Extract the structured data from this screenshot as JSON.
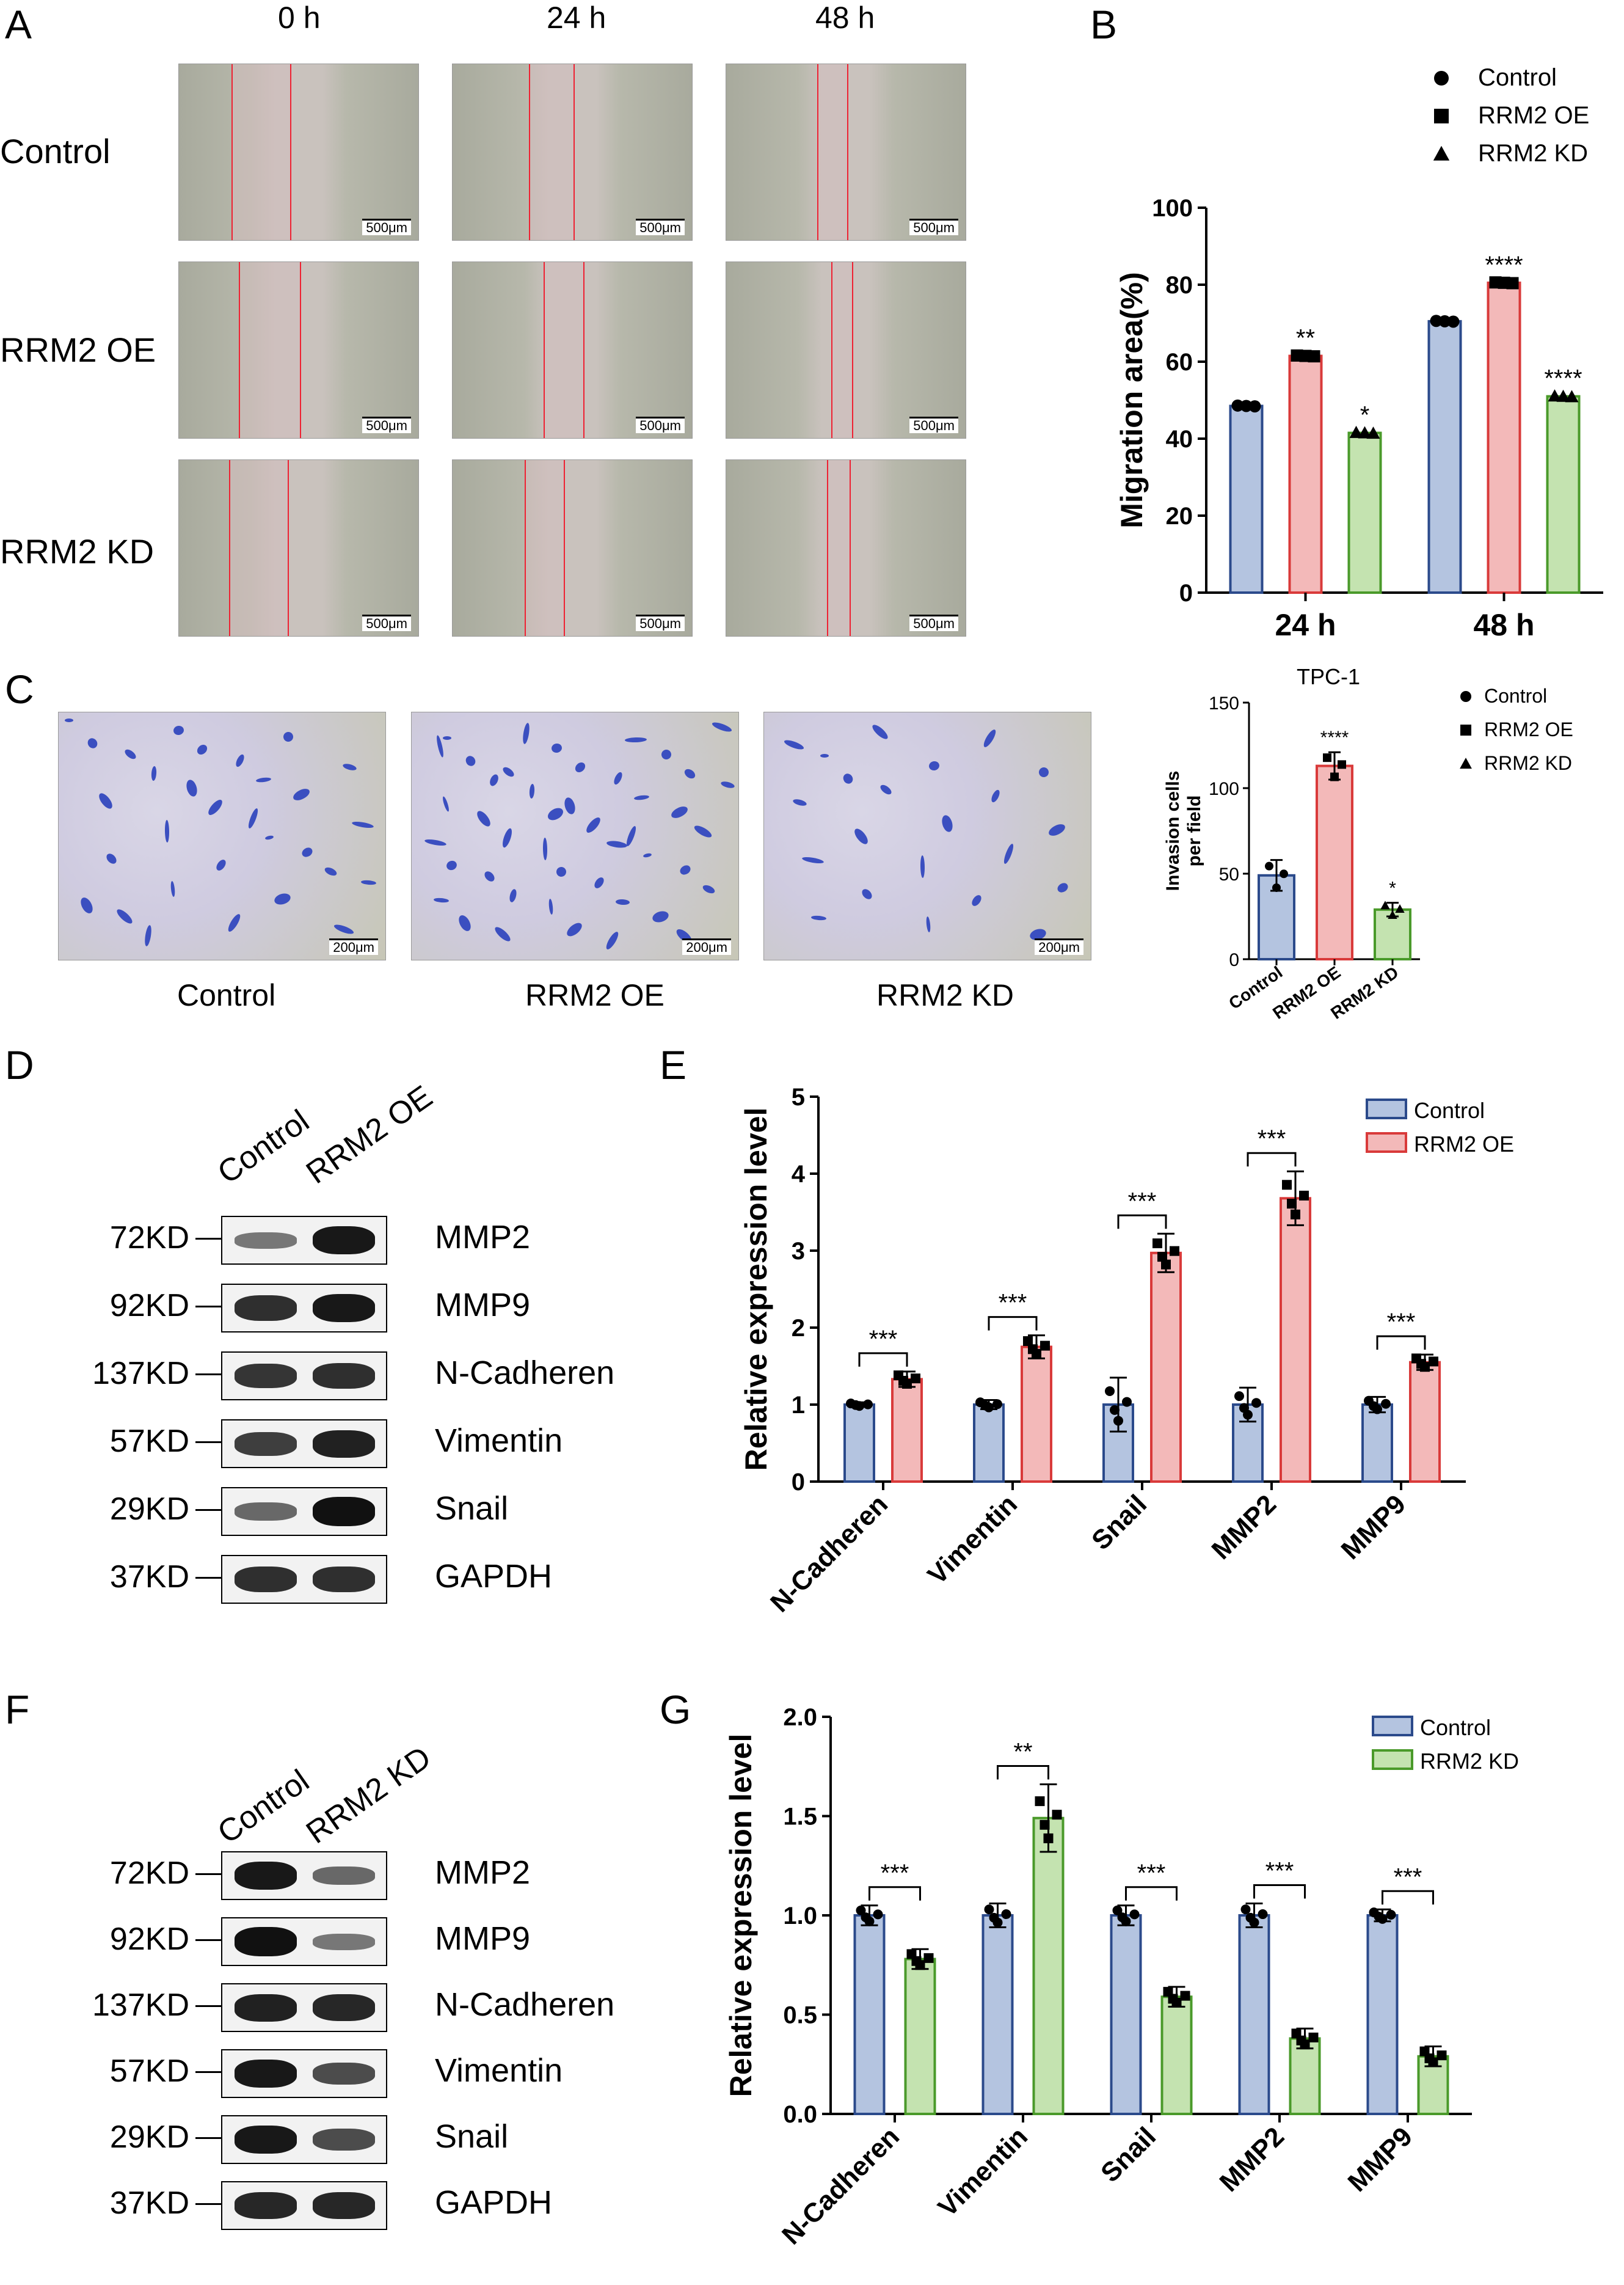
{
  "panels": {
    "A": "A",
    "B": "B",
    "C": "C",
    "D": "D",
    "E": "E",
    "F": "F",
    "G": "G"
  },
  "panel_a": {
    "time_labels": [
      "0 h",
      "24 h",
      "48 h"
    ],
    "row_labels": [
      "Control",
      "RRM2 OE",
      "RRM2 KD"
    ],
    "scale_bar": "500μm"
  },
  "panel_c": {
    "image_labels": [
      "Control",
      "RRM2 OE",
      "RRM2 KD"
    ],
    "scale_bar": "200μm"
  },
  "panel_d": {
    "lanes": [
      "Control",
      "RRM2 OE"
    ],
    "markers": [
      "72KD",
      "92KD",
      "137KD",
      "57KD",
      "29KD",
      "37KD"
    ],
    "proteins": [
      "MMP2",
      "MMP9",
      "N-Cadheren",
      "Vimentin",
      "Snail",
      "GAPDH"
    ]
  },
  "panel_f": {
    "lanes": [
      "Control",
      "RRM2 KD"
    ],
    "markers": [
      "72KD",
      "92KD",
      "137KD",
      "57KD",
      "29KD",
      "37KD"
    ],
    "proteins": [
      "MMP2",
      "MMP9",
      "N-Cadheren",
      "Vimentin",
      "Snail",
      "GAPDH"
    ]
  },
  "colors": {
    "control_fill": "#b4c4e0",
    "control_stroke": "#2b4a8b",
    "oe_fill": "#f3b9b9",
    "oe_stroke": "#d93a3a",
    "kd_fill": "#c4e3b0",
    "kd_stroke": "#4a9a2a"
  },
  "chart_data": [
    {
      "id": "B",
      "type": "bar",
      "categories": [
        "24 h",
        "48 h"
      ],
      "ylabel": "Migration area(%)",
      "ylim": [
        0,
        100
      ],
      "yticks": [
        "0",
        "20",
        "40",
        "60",
        "80",
        "100"
      ],
      "legend": [
        "Control",
        "RRM2 OE",
        "RRM2 KD"
      ],
      "series": [
        {
          "name": "Control",
          "values": [
            48.5,
            70.5
          ],
          "sig": [
            "",
            ""
          ]
        },
        {
          "name": "RRM2 OE",
          "values": [
            61.5,
            80.5
          ],
          "sig": [
            "**",
            "****"
          ]
        },
        {
          "name": "RRM2 KD",
          "values": [
            41.5,
            51
          ],
          "sig": [
            "*",
            "****"
          ]
        }
      ]
    },
    {
      "id": "C",
      "type": "bar",
      "title": "TPC-1",
      "categories": [
        "Control",
        "RRM2 OE",
        "RRM2 KD"
      ],
      "ylabel": "Invasion cells per field",
      "ylim": [
        0,
        150
      ],
      "yticks": [
        "0",
        "50",
        "100",
        "150"
      ],
      "legend": [
        "Control",
        "RRM2 OE",
        "RRM2 KD"
      ],
      "values": [
        49,
        113,
        29
      ],
      "errors": [
        9,
        8,
        4
      ],
      "sig": [
        "",
        "****",
        "*"
      ]
    },
    {
      "id": "E",
      "type": "bar",
      "categories": [
        "N-Cadheren",
        "Vimentin",
        "Snail",
        "MMP2",
        "MMP9"
      ],
      "ylabel": "Relative  expression level",
      "ylim": [
        0,
        5
      ],
      "yticks": [
        "0",
        "1",
        "2",
        "3",
        "4",
        "5"
      ],
      "legend": [
        "Control",
        "RRM2 OE"
      ],
      "series": [
        {
          "name": "Control",
          "values": [
            1.0,
            1.0,
            1.0,
            1.0,
            1.0
          ],
          "errors": [
            0.03,
            0.06,
            0.35,
            0.22,
            0.1
          ]
        },
        {
          "name": "RRM2 OE",
          "values": [
            1.33,
            1.75,
            2.97,
            3.68,
            1.55
          ],
          "errors": [
            0.1,
            0.15,
            0.25,
            0.35,
            0.1
          ]
        }
      ],
      "sig": [
        "***",
        "***",
        "***",
        "***",
        "***"
      ]
    },
    {
      "id": "G",
      "type": "bar",
      "categories": [
        "N-Cadheren",
        "Vimentin",
        "Snail",
        "MMP2",
        "MMP9"
      ],
      "ylabel": "Relative  expression level",
      "ylim": [
        0,
        2.0
      ],
      "yticks": [
        "0.0",
        "0.5",
        "1.0",
        "1.5",
        "2.0"
      ],
      "legend": [
        "Control",
        "RRM2 KD"
      ],
      "series": [
        {
          "name": "Control",
          "values": [
            1.0,
            1.0,
            1.0,
            1.0,
            1.0
          ],
          "errors": [
            0.05,
            0.06,
            0.05,
            0.06,
            0.03
          ]
        },
        {
          "name": "RRM2 KD",
          "values": [
            0.78,
            1.49,
            0.59,
            0.38,
            0.29
          ],
          "errors": [
            0.05,
            0.17,
            0.05,
            0.05,
            0.05
          ]
        }
      ],
      "sig": [
        "***",
        "**",
        "***",
        "***",
        "***"
      ]
    }
  ]
}
